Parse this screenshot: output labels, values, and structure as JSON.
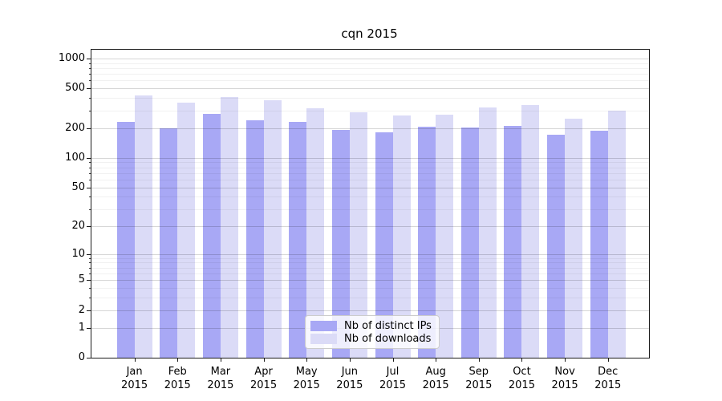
{
  "title": "cqn 2015",
  "legend": {
    "items": [
      {
        "label": "Nb of distinct IPs",
        "color": "#a8a8f5"
      },
      {
        "label": "Nb of downloads",
        "color": "#dbdbf7"
      }
    ]
  },
  "chart_data": {
    "type": "bar",
    "title": "cqn 2015",
    "categories": [
      "Jan 2015",
      "Feb 2015",
      "Mar 2015",
      "Apr 2015",
      "May 2015",
      "Jun 2015",
      "Jul 2015",
      "Aug 2015",
      "Sep 2015",
      "Oct 2015",
      "Nov 2015",
      "Dec 2015"
    ],
    "series": [
      {
        "name": "Nb of distinct IPs",
        "color": "#a8a8f5",
        "values": [
          232,
          198,
          278,
          241,
          231,
          192,
          180,
          206,
          201,
          211,
          172,
          186
        ]
      },
      {
        "name": "Nb of downloads",
        "color": "#dbdbf7",
        "values": [
          428,
          360,
          408,
          381,
          315,
          290,
          269,
          272,
          321,
          341,
          249,
          301
        ]
      }
    ],
    "xlabel": "",
    "ylabel": "",
    "yscale": "log(1+v)",
    "ylim": [
      0,
      1230
    ],
    "y_ticks": [
      0,
      1,
      2,
      5,
      10,
      20,
      50,
      100,
      200,
      500,
      1000
    ],
    "y_minor_ticks": [
      3,
      4,
      6,
      7,
      8,
      9,
      30,
      40,
      60,
      70,
      80,
      90,
      300,
      400,
      600,
      700,
      800,
      900
    ],
    "grid": true,
    "grid_over_bars": true,
    "legend_position": "lower center inside"
  },
  "colors": {
    "background": "#ffffff",
    "axis": "#1a1a1a",
    "bar_dark": "#a8a8f5",
    "bar_light": "#dbdbf7",
    "grid_major": "rgba(0,0,0,0.16)",
    "grid_minor": "rgba(0,0,0,0.055)"
  }
}
